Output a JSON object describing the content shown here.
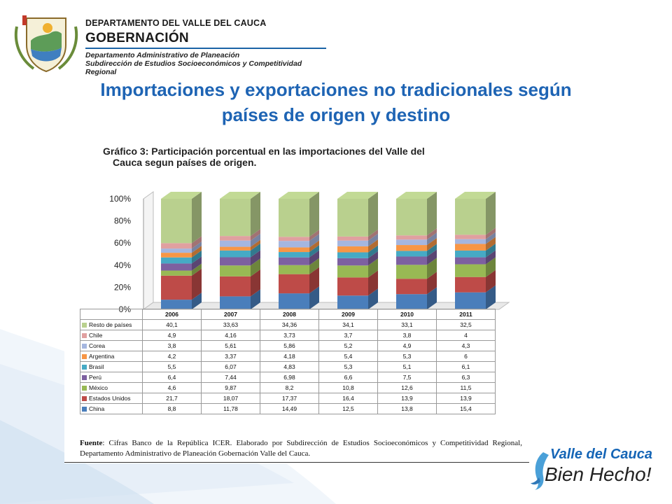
{
  "header": {
    "org_line1": "DEPARTAMENTO DEL VALLE DEL CAUCA",
    "org_line2": "GOBERNACIÓN",
    "dept_line1": "Departamento  Administrativo de Planeación",
    "dept_line2": "Subdirección de Estudios Socioeconómicos y Competitividad Regional"
  },
  "slide": {
    "title_line1": "Importaciones y exportaciones no tradicionales según",
    "title_line2": "países de origen y destino"
  },
  "figure": {
    "title_line1": "Gráfico 3: Participación porcentual en las importaciones del Valle del",
    "title_line2": "Cauca  segun países de origen.",
    "source_label": "Fuente",
    "source_text": ": Cifras Banco de la República ICER. Elaborado por Subdirección de Estudios Socioeconómicos y Competitividad Regional, Departamento Administrativo de Planeación Gobernación Valle del Cauca."
  },
  "chart_data": {
    "type": "bar",
    "stacked": true,
    "percent_stacked": true,
    "categories": [
      "2006",
      "2007",
      "2008",
      "2009",
      "2010",
      "2011"
    ],
    "y_ticks": [
      "0%",
      "20%",
      "40%",
      "60%",
      "80%",
      "100%"
    ],
    "ylim": [
      0,
      100
    ],
    "series": [
      {
        "name": "China",
        "color": "#4a7ebb",
        "values": [
          8.8,
          11.78,
          14.49,
          12.5,
          13.8,
          15.4
        ],
        "labels": [
          "8,8",
          "11,78",
          "14,49",
          "12,5",
          "13,8",
          "15,4"
        ]
      },
      {
        "name": "Estados Unidos",
        "color": "#be4b48",
        "values": [
          21.7,
          18.07,
          17.37,
          16.4,
          13.9,
          13.9
        ],
        "labels": [
          "21,7",
          "18,07",
          "17,37",
          "16,4",
          "13,9",
          "13,9"
        ]
      },
      {
        "name": "México",
        "color": "#98b954",
        "values": [
          4.6,
          9.87,
          8.2,
          10.8,
          12.6,
          11.5
        ],
        "labels": [
          "4,6",
          "9,87",
          "8,2",
          "10,8",
          "12,6",
          "11,5"
        ]
      },
      {
        "name": "Perú",
        "color": "#7d60a0",
        "values": [
          6.4,
          7.44,
          6.98,
          6.6,
          7.5,
          6.3
        ],
        "labels": [
          "6,4",
          "7,44",
          "6,98",
          "6,6",
          "7,5",
          "6,3"
        ]
      },
      {
        "name": "Brasil",
        "color": "#46aac5",
        "values": [
          5.5,
          6.07,
          4.83,
          5.3,
          5.1,
          6.1
        ],
        "labels": [
          "5,5",
          "6,07",
          "4,83",
          "5,3",
          "5,1",
          "6,1"
        ]
      },
      {
        "name": "Argentina",
        "color": "#f79646",
        "values": [
          4.2,
          3.37,
          4.18,
          5.4,
          5.3,
          6
        ],
        "labels": [
          "4,2",
          "3,37",
          "4,18",
          "5,4",
          "5,3",
          "6"
        ]
      },
      {
        "name": "Corea",
        "color": "#a5b6df",
        "values": [
          3.8,
          5.61,
          5.86,
          5.2,
          4.9,
          4.3
        ],
        "labels": [
          "3,8",
          "5,61",
          "5,86",
          "5,2",
          "4,9",
          "4,3"
        ]
      },
      {
        "name": "Chile",
        "color": "#e0a0a0",
        "values": [
          4.9,
          4.16,
          3.73,
          3.7,
          3.8,
          4
        ],
        "labels": [
          "4,9",
          "4,16",
          "3,73",
          "3,7",
          "3,8",
          "4"
        ]
      },
      {
        "name": "Resto de países",
        "color": "#b9d08e",
        "values": [
          40.1,
          33.63,
          34.36,
          34.1,
          33.1,
          32.5
        ],
        "labels": [
          "40,1",
          "33,63",
          "34,36",
          "34,1",
          "33,1",
          "32,5"
        ]
      }
    ],
    "table_row_order": [
      "Resto de países",
      "Chile",
      "Corea",
      "Argentina",
      "Brasil",
      "Perú",
      "México",
      "Estados Unidos",
      "China"
    ]
  },
  "brand": {
    "line1": "Valle del Cauca",
    "line2": "Bien Hecho!"
  }
}
